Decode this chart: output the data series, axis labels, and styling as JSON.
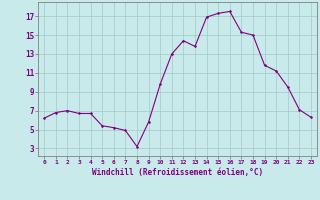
{
  "x": [
    0,
    1,
    2,
    3,
    4,
    5,
    6,
    7,
    8,
    9,
    10,
    11,
    12,
    13,
    14,
    15,
    16,
    17,
    18,
    19,
    20,
    21,
    22,
    23
  ],
  "y": [
    6.2,
    6.8,
    7.0,
    6.7,
    6.7,
    5.4,
    5.2,
    4.9,
    3.2,
    5.8,
    9.8,
    13.0,
    14.4,
    13.8,
    16.9,
    17.3,
    17.5,
    15.3,
    15.0,
    11.8,
    11.2,
    9.5,
    7.1,
    6.3
  ],
  "line_color": "#800080",
  "marker_color": "#800080",
  "bg_color": "#c8eaea",
  "grid_color": "#a0c8c8",
  "xlabel": "Windchill (Refroidissement éolien,°C)",
  "xlabel_color": "#800080",
  "tick_color": "#800080",
  "border_color": "#808080",
  "ylabel_ticks": [
    3,
    5,
    7,
    9,
    11,
    13,
    15,
    17
  ],
  "xlim": [
    -0.5,
    23.5
  ],
  "ylim": [
    2.2,
    18.5
  ],
  "xtick_labels": [
    "0",
    "1",
    "2",
    "3",
    "4",
    "5",
    "6",
    "7",
    "8",
    "9",
    "10",
    "11",
    "12",
    "13",
    "14",
    "15",
    "16",
    "17",
    "18",
    "19",
    "20",
    "21",
    "22",
    "23"
  ]
}
